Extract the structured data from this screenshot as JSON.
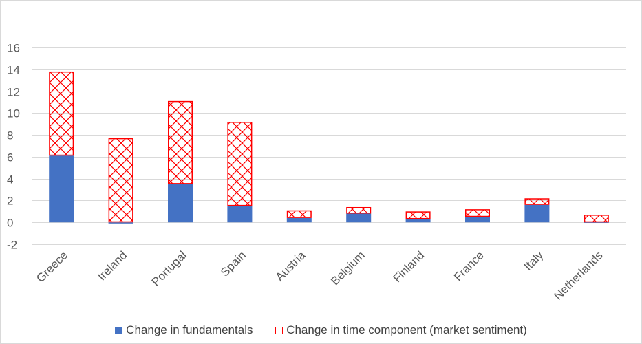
{
  "chart_data": {
    "type": "bar",
    "stacked": true,
    "title": "",
    "xlabel": "",
    "ylabel": "",
    "ylim": [
      -2,
      16
    ],
    "yticks": [
      -2,
      0,
      2,
      4,
      6,
      8,
      10,
      12,
      14,
      16
    ],
    "grid": true,
    "legend_position": "bottom",
    "categories": [
      "Greece",
      "Ireland",
      "Portugal",
      "Spain",
      "Austria",
      "Belgium",
      "Finland",
      "France",
      "Italy",
      "Netherlands"
    ],
    "series": [
      {
        "name": "Change in fundamentals",
        "color": "#4472c4",
        "style": "solid",
        "values": [
          6.1,
          -0.1,
          3.5,
          1.5,
          0.4,
          0.8,
          0.3,
          0.5,
          1.6,
          0.0
        ]
      },
      {
        "name": "Change in time component (market sentiment)",
        "color": "#ff0000",
        "style": "crosshatch",
        "values": [
          7.7,
          7.7,
          7.6,
          7.7,
          0.7,
          0.6,
          0.7,
          0.7,
          0.6,
          0.7
        ]
      }
    ]
  }
}
